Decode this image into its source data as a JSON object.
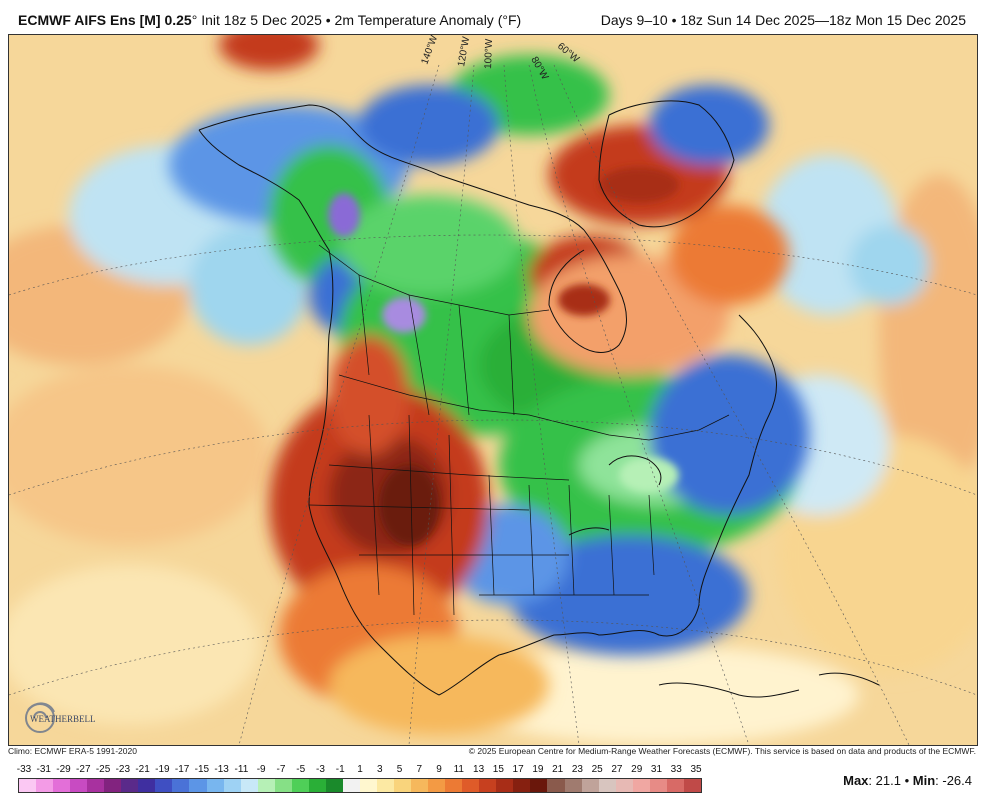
{
  "header": {
    "model": "ECMWF AIFS Ens [M] 0.25",
    "degree": "°",
    "init": "Init 18z 5 Dec 2025",
    "bullet": "•",
    "variable": "2m Temperature Anomaly (°F)",
    "valid": "Days 9–10 • 18z Sun 14 Dec 2025—18z Mon 15 Dec 2025"
  },
  "map": {
    "longitude_labels": [
      "140°W",
      "120°W",
      "100°W",
      "80°W",
      "60°W"
    ],
    "logo_text": "WEATHERBELL"
  },
  "footer": {
    "climo": "Climo: ECMWF ERA-5 1991-2020",
    "copyright": "© 2025 European Centre for Medium-Range Weather Forecasts (ECMWF). This service is based on data and products of the ECMWF."
  },
  "colorbar": {
    "labels": [
      "-33",
      "-31",
      "-29",
      "-27",
      "-25",
      "-23",
      "-21",
      "-19",
      "-17",
      "-15",
      "-13",
      "-11",
      "-9",
      "-7",
      "-5",
      "-3",
      "-1",
      "1",
      "3",
      "5",
      "7",
      "9",
      "11",
      "13",
      "15",
      "17",
      "19",
      "21",
      "23",
      "25",
      "27",
      "29",
      "31",
      "33",
      "35"
    ],
    "colors": [
      "#fbc8f3",
      "#f39be6",
      "#e36fd8",
      "#c84bc2",
      "#a8319f",
      "#82237f",
      "#5a2a8a",
      "#3f2fa0",
      "#3f4fc2",
      "#4a72d7",
      "#5c95e6",
      "#78b6ef",
      "#9ed2f4",
      "#c8e8f7",
      "#b6f0b6",
      "#86e086",
      "#4fcf58",
      "#2aaf37",
      "#1a8a2b",
      "#f2f2f2",
      "#fff7cf",
      "#fce9a3",
      "#f9d47c",
      "#f6b85c",
      "#f39a44",
      "#ec7a34",
      "#df5b29",
      "#c7401f",
      "#a82d17",
      "#862010",
      "#6a170b",
      "#8a5a4c",
      "#a07b6f",
      "#c0a39a",
      "#d8c5bf",
      "#e7b9b4",
      "#f0a7a2",
      "#e78b86",
      "#d86a66",
      "#c04a48"
    ]
  },
  "stats": {
    "max_label": "Max",
    "max_value": ": 21.1",
    "sep": "•",
    "min_label": "Min",
    "min_value": ": -26.4"
  },
  "colors": {
    "ocean_warm": "#f6d79a",
    "ocean_cool": "#9fd6ee",
    "cold_green": "#35c14a",
    "cold_blue": "#3a6fd4",
    "warm_red": "#c43a1f",
    "warm_dark": "#8c2612",
    "purple": "#8a6bd6"
  }
}
